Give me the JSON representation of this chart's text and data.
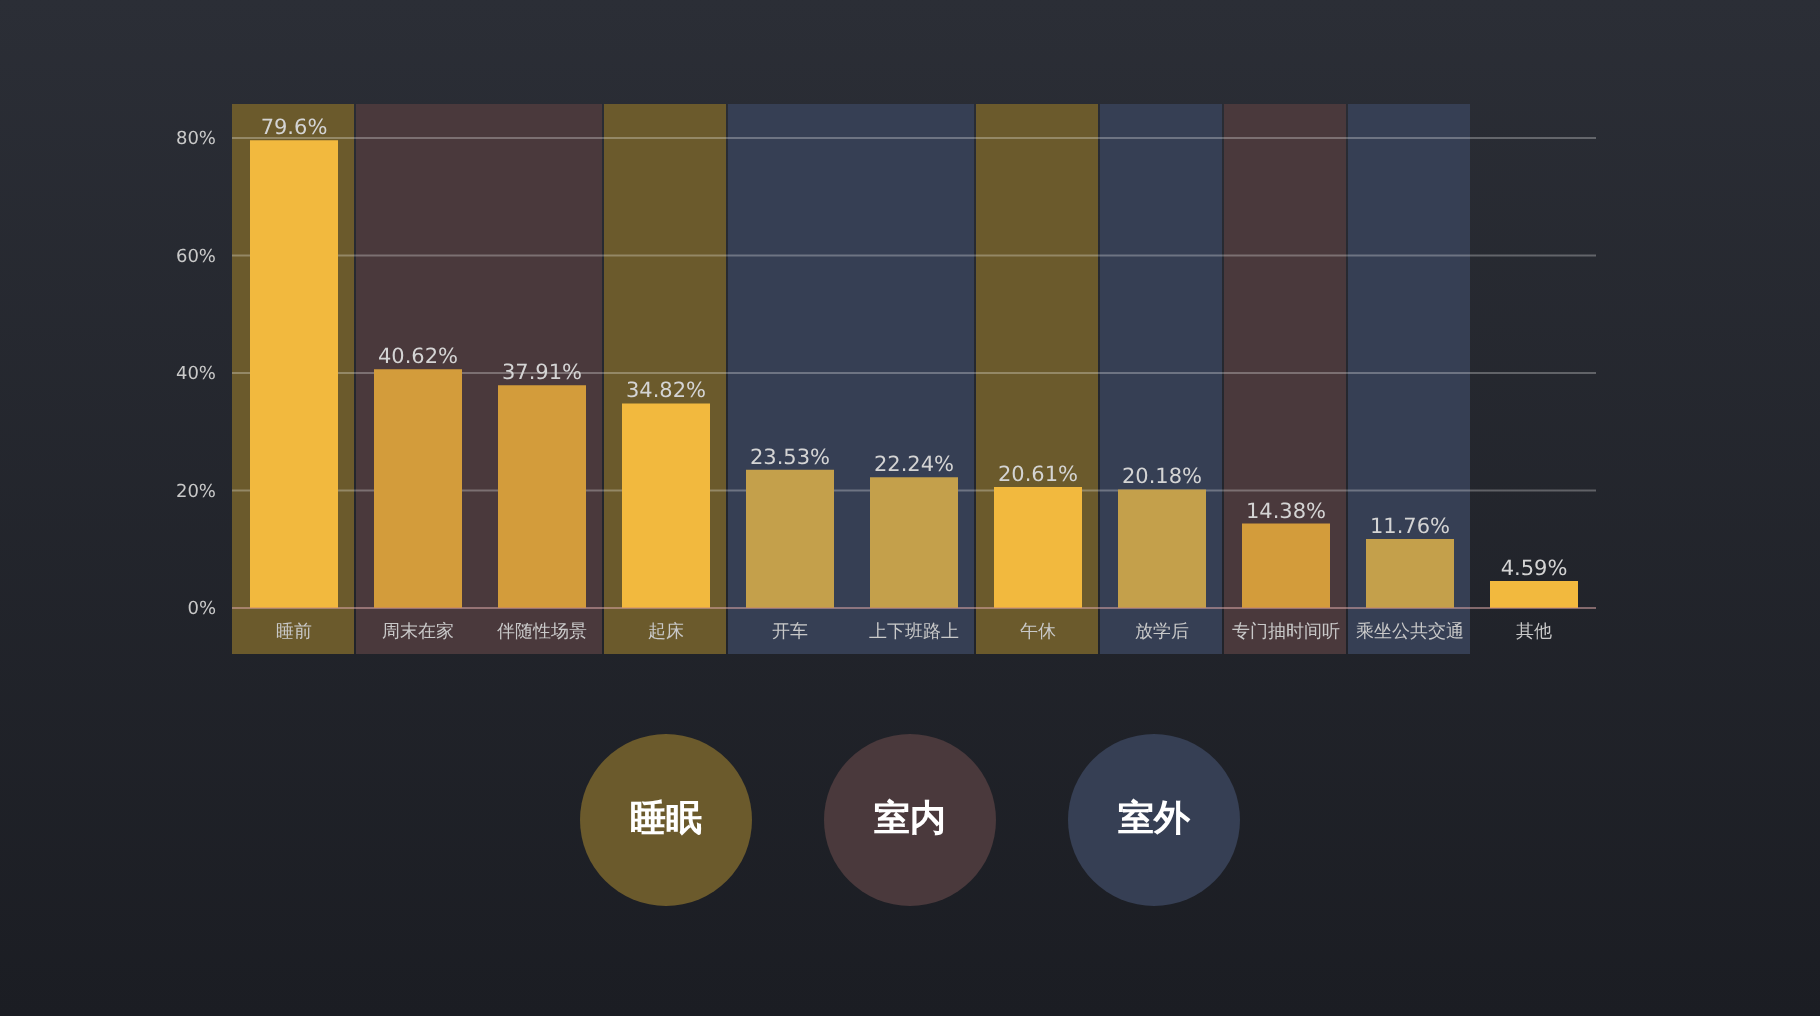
{
  "chart_data": {
    "type": "bar",
    "categories": [
      "睡前",
      "周末在家",
      "伴随性场景",
      "起床",
      "开车",
      "上下班路上",
      "午休",
      "放学后",
      "专门抽时间听",
      "乘坐公共交通",
      "其他"
    ],
    "values": [
      79.6,
      40.62,
      37.91,
      34.82,
      23.53,
      22.24,
      20.61,
      20.18,
      14.38,
      11.76,
      4.59
    ],
    "value_labels": [
      "79.6%",
      "40.62%",
      "37.91%",
      "34.82%",
      "23.53%",
      "22.24%",
      "20.61%",
      "20.18%",
      "14.38%",
      "11.76%",
      "4.59%"
    ],
    "colors": [
      "#f2b93e",
      "#d39c3b",
      "#d39c3b",
      "#f2b93e",
      "#c4a04b",
      "#c4a04b",
      "#f2b93e",
      "#c4a04b",
      "#d39c3b",
      "#c4a04b",
      "#f2b93e"
    ],
    "ylim": [
      0,
      80
    ],
    "yticks": [
      {
        "value": 0,
        "label": "0%"
      },
      {
        "value": 20,
        "label": "20%"
      },
      {
        "value": 40,
        "label": "40%"
      },
      {
        "value": 60,
        "label": "60%"
      },
      {
        "value": 80,
        "label": "80%"
      }
    ],
    "grid": "y",
    "annotations": [
      "睡眠",
      "室内",
      "室外"
    ],
    "bands": [
      {
        "axis": "x",
        "from": "睡前",
        "to": "睡前",
        "color": "#6b5a2c"
      },
      {
        "axis": "x",
        "from": "周末在家",
        "to": "伴随性场景",
        "color": "#4a393c"
      },
      {
        "axis": "x",
        "from": "起床",
        "to": "起床",
        "color": "#6b5a2c"
      },
      {
        "axis": "x",
        "from": "开车",
        "to": "上下班路上",
        "color": "#363f54"
      },
      {
        "axis": "x",
        "from": "午休",
        "to": "午休",
        "color": "#6b5a2c"
      },
      {
        "axis": "x",
        "from": "放学后",
        "to": "放学后",
        "color": "#363f54"
      },
      {
        "axis": "x",
        "from": "专门抽时间听",
        "to": "专门抽时间听",
        "color": "#4a393c"
      },
      {
        "axis": "x",
        "from": "乘坐公共交通",
        "to": "乘坐公共交通",
        "color": "#363f54"
      }
    ]
  }
}
